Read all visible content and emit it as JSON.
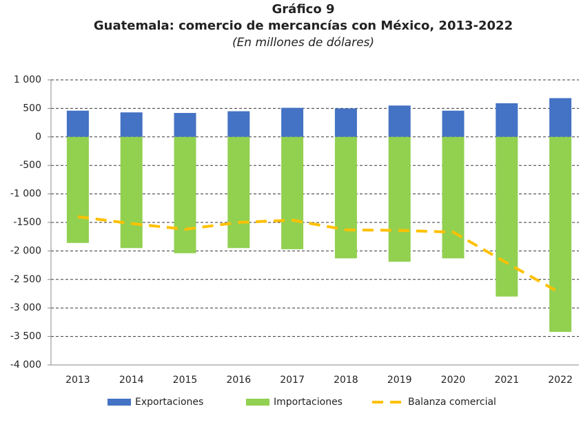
{
  "chart_data": {
    "type": "bar",
    "title": "Gráfico 9",
    "subtitle": "Guatemala: comercio de mercancías con México, 2013-2022",
    "note": "(En millones de dólares)",
    "categories": [
      "2013",
      "2014",
      "2015",
      "2016",
      "2017",
      "2018",
      "2019",
      "2020",
      "2021",
      "2022"
    ],
    "series": [
      {
        "name": "Exportaciones",
        "type": "bar",
        "color": "#4472c4",
        "values": [
          460,
          430,
          420,
          450,
          510,
          500,
          550,
          460,
          590,
          680
        ]
      },
      {
        "name": "Importaciones",
        "type": "bar",
        "color": "#92d050",
        "values": [
          -1860,
          -1950,
          -2040,
          -1950,
          -1970,
          -2130,
          -2190,
          -2130,
          -2800,
          -3420
        ]
      },
      {
        "name": "Balanza comercial",
        "type": "line",
        "color": "#ffc000",
        "values": [
          -1400,
          -1520,
          -1620,
          -1500,
          -1460,
          -1630,
          -1640,
          -1670,
          -2210,
          -2740
        ]
      }
    ],
    "ylim": [
      -4000,
      1000
    ],
    "yticks": [
      {
        "value": 1000,
        "label": "1 000"
      },
      500,
      0,
      -500,
      {
        "value": -1000,
        "label": "-1 000"
      },
      -1500,
      {
        "value": -2000,
        "label": "-2 000"
      },
      {
        "value": -2500,
        "label": "-2 500"
      },
      {
        "value": -3000,
        "label": "-3 000"
      },
      {
        "value": -3500,
        "label": "-3 500"
      },
      {
        "value": -4000,
        "label": "-4 000"
      }
    ],
    "grid": true,
    "legend": "bottom"
  }
}
